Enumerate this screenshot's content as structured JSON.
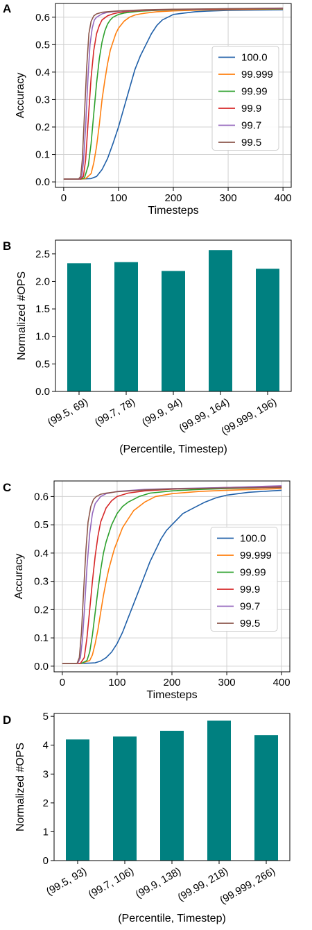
{
  "colors": {
    "series": [
      "#1f5fa8",
      "#ff7f0e",
      "#2ca02c",
      "#d62728",
      "#9467bd",
      "#8c564b"
    ],
    "bar": "#008080",
    "grid": "#d0d0d0"
  },
  "chart_data": [
    {
      "panel": "A",
      "type": "line",
      "xlabel": "Timesteps",
      "ylabel": "Accuracy",
      "xlim": [
        -15,
        415
      ],
      "ylim": [
        -0.02,
        0.65
      ],
      "xticks": [
        0,
        100,
        200,
        300,
        400
      ],
      "yticks": [
        0.0,
        0.1,
        0.2,
        0.3,
        0.4,
        0.5,
        0.6
      ],
      "grid": true,
      "legend": "center-right",
      "series": [
        {
          "name": "100.0",
          "color": "#1f5fa8",
          "x": [
            0,
            30,
            50,
            60,
            70,
            80,
            90,
            100,
            110,
            120,
            130,
            140,
            150,
            160,
            170,
            180,
            190,
            200,
            220,
            240,
            260,
            300,
            350,
            400
          ],
          "y": [
            0.01,
            0.01,
            0.012,
            0.02,
            0.045,
            0.085,
            0.14,
            0.2,
            0.27,
            0.34,
            0.41,
            0.46,
            0.5,
            0.54,
            0.57,
            0.59,
            0.6,
            0.61,
            0.615,
            0.62,
            0.622,
            0.625,
            0.626,
            0.627
          ]
        },
        {
          "name": "99.999",
          "color": "#ff7f0e",
          "x": [
            0,
            30,
            40,
            50,
            55,
            60,
            65,
            70,
            75,
            80,
            85,
            90,
            95,
            100,
            110,
            120,
            130,
            140,
            150,
            170,
            200,
            250,
            300,
            400
          ],
          "y": [
            0.01,
            0.01,
            0.012,
            0.03,
            0.07,
            0.13,
            0.21,
            0.3,
            0.37,
            0.43,
            0.48,
            0.51,
            0.54,
            0.56,
            0.585,
            0.6,
            0.608,
            0.612,
            0.615,
            0.62,
            0.623,
            0.626,
            0.628,
            0.63
          ]
        },
        {
          "name": "99.99",
          "color": "#2ca02c",
          "x": [
            0,
            30,
            38,
            45,
            50,
            55,
            60,
            65,
            70,
            75,
            80,
            85,
            90,
            100,
            110,
            120,
            140,
            170,
            200,
            300,
            400
          ],
          "y": [
            0.01,
            0.01,
            0.015,
            0.06,
            0.14,
            0.25,
            0.36,
            0.45,
            0.51,
            0.55,
            0.575,
            0.59,
            0.6,
            0.61,
            0.615,
            0.618,
            0.622,
            0.625,
            0.627,
            0.63,
            0.631
          ]
        },
        {
          "name": "99.9",
          "color": "#d62728",
          "x": [
            0,
            30,
            36,
            40,
            45,
            50,
            55,
            60,
            65,
            70,
            80,
            90,
            100,
            120,
            150,
            200,
            300,
            400
          ],
          "y": [
            0.01,
            0.01,
            0.02,
            0.08,
            0.23,
            0.38,
            0.48,
            0.54,
            0.57,
            0.59,
            0.605,
            0.612,
            0.617,
            0.622,
            0.625,
            0.628,
            0.63,
            0.632
          ]
        },
        {
          "name": "99.7",
          "color": "#9467bd",
          "x": [
            0,
            28,
            33,
            36,
            40,
            44,
            48,
            52,
            56,
            60,
            70,
            80,
            100,
            150,
            200,
            300,
            400
          ],
          "y": [
            0.01,
            0.01,
            0.02,
            0.07,
            0.2,
            0.37,
            0.5,
            0.56,
            0.59,
            0.6,
            0.612,
            0.618,
            0.622,
            0.626,
            0.628,
            0.631,
            0.632
          ]
        },
        {
          "name": "99.5",
          "color": "#8c564b",
          "x": [
            0,
            27,
            31,
            34,
            38,
            42,
            46,
            50,
            55,
            60,
            70,
            80,
            100,
            150,
            200,
            300,
            400
          ],
          "y": [
            0.01,
            0.01,
            0.02,
            0.08,
            0.25,
            0.42,
            0.54,
            0.585,
            0.605,
            0.612,
            0.618,
            0.62,
            0.623,
            0.627,
            0.629,
            0.631,
            0.633
          ]
        }
      ]
    },
    {
      "panel": "B",
      "type": "bar",
      "xlabel": "(Percentile, Timestep)",
      "ylabel": "Normalized #OPS",
      "ylim": [
        0,
        2.75
      ],
      "yticks": [
        0.0,
        0.5,
        1.0,
        1.5,
        2.0,
        2.5
      ],
      "categories": [
        "(99.5, 69)",
        "(99.7, 78)",
        "(99.9, 94)",
        "(99.99, 164)",
        "(99.999, 196)"
      ],
      "values": [
        2.33,
        2.35,
        2.19,
        2.57,
        2.23
      ]
    },
    {
      "panel": "C",
      "type": "line",
      "xlabel": "Timesteps",
      "ylabel": "Accuracy",
      "xlim": [
        -15,
        415
      ],
      "ylim": [
        -0.02,
        0.655
      ],
      "xticks": [
        0,
        100,
        200,
        300,
        400
      ],
      "yticks": [
        0.0,
        0.1,
        0.2,
        0.3,
        0.4,
        0.5,
        0.6
      ],
      "grid": true,
      "legend": "center-right",
      "series": [
        {
          "name": "100.0",
          "color": "#1f5fa8",
          "x": [
            0,
            40,
            60,
            70,
            80,
            90,
            100,
            110,
            120,
            130,
            140,
            150,
            160,
            170,
            180,
            190,
            200,
            220,
            240,
            260,
            280,
            300,
            340,
            400
          ],
          "y": [
            0.01,
            0.01,
            0.012,
            0.018,
            0.03,
            0.05,
            0.08,
            0.12,
            0.17,
            0.22,
            0.27,
            0.32,
            0.37,
            0.41,
            0.45,
            0.48,
            0.5,
            0.54,
            0.56,
            0.58,
            0.595,
            0.605,
            0.615,
            0.622
          ]
        },
        {
          "name": "99.999",
          "color": "#ff7f0e",
          "x": [
            0,
            35,
            50,
            55,
            60,
            65,
            70,
            75,
            80,
            85,
            90,
            95,
            100,
            110,
            120,
            130,
            140,
            150,
            170,
            200,
            250,
            300,
            400
          ],
          "y": [
            0.01,
            0.01,
            0.02,
            0.04,
            0.08,
            0.13,
            0.19,
            0.25,
            0.3,
            0.345,
            0.38,
            0.415,
            0.44,
            0.49,
            0.52,
            0.55,
            0.565,
            0.58,
            0.6,
            0.61,
            0.618,
            0.622,
            0.628
          ]
        },
        {
          "name": "99.99",
          "color": "#2ca02c",
          "x": [
            0,
            35,
            45,
            50,
            55,
            60,
            65,
            70,
            75,
            80,
            90,
            100,
            110,
            120,
            140,
            160,
            200,
            250,
            300,
            400
          ],
          "y": [
            0.01,
            0.01,
            0.02,
            0.05,
            0.11,
            0.19,
            0.27,
            0.34,
            0.4,
            0.44,
            0.5,
            0.54,
            0.565,
            0.58,
            0.6,
            0.612,
            0.62,
            0.625,
            0.628,
            0.633
          ]
        },
        {
          "name": "99.9",
          "color": "#d62728",
          "x": [
            0,
            33,
            40,
            45,
            50,
            55,
            60,
            65,
            70,
            80,
            90,
            100,
            120,
            150,
            200,
            300,
            400
          ],
          "y": [
            0.01,
            0.01,
            0.03,
            0.1,
            0.2,
            0.3,
            0.39,
            0.46,
            0.51,
            0.56,
            0.585,
            0.6,
            0.612,
            0.62,
            0.626,
            0.632,
            0.636
          ]
        },
        {
          "name": "99.7",
          "color": "#9467bd",
          "x": [
            0,
            28,
            33,
            37,
            41,
            45,
            50,
            55,
            60,
            70,
            80,
            100,
            150,
            200,
            300,
            400
          ],
          "y": [
            0.01,
            0.01,
            0.03,
            0.1,
            0.22,
            0.35,
            0.47,
            0.54,
            0.575,
            0.6,
            0.61,
            0.618,
            0.625,
            0.628,
            0.632,
            0.638
          ]
        },
        {
          "name": "99.5",
          "color": "#8c564b",
          "x": [
            0,
            27,
            31,
            35,
            39,
            43,
            47,
            52,
            57,
            62,
            70,
            80,
            100,
            150,
            200,
            300,
            400
          ],
          "y": [
            0.01,
            0.01,
            0.03,
            0.12,
            0.27,
            0.41,
            0.51,
            0.565,
            0.59,
            0.6,
            0.608,
            0.612,
            0.617,
            0.623,
            0.627,
            0.63,
            0.632
          ]
        }
      ]
    },
    {
      "panel": "D",
      "type": "bar",
      "xlabel": "(Percentile, Timestep)",
      "ylabel": "Normalized #OPS",
      "ylim": [
        0,
        5.1
      ],
      "yticks": [
        0,
        1,
        2,
        3,
        4,
        5
      ],
      "categories": [
        "(99.5, 93)",
        "(99.7, 106)",
        "(99.9, 138)",
        "(99.99, 218)",
        "(99.999, 266)"
      ],
      "values": [
        4.2,
        4.3,
        4.5,
        4.85,
        4.35
      ]
    }
  ]
}
